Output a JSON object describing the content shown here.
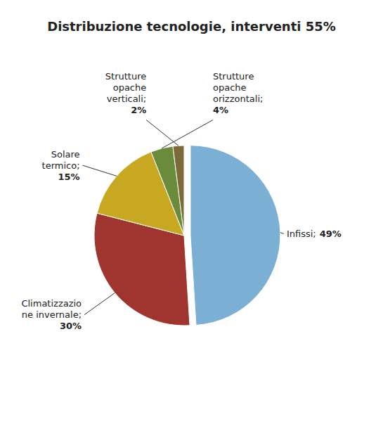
{
  "chart_data": {
    "type": "pie",
    "title": "Distribuzione tecnologie, interventi 55%",
    "categories": [
      "Infissi;",
      "Climatizzazio\nne invernale;",
      "Solare\ntermico;",
      "Strutture\nopache\norizzontali;",
      "Strutture\nopache\nverticali;"
    ],
    "values": [
      49,
      30,
      15,
      4,
      2
    ],
    "value_labels": [
      "49%",
      "30%",
      "15%",
      "4%",
      "2%"
    ],
    "colors": [
      "#7BAFD4",
      "#A03530",
      "#C8A820",
      "#6A8C3A",
      "#7A6B38"
    ],
    "data_labels": true
  }
}
